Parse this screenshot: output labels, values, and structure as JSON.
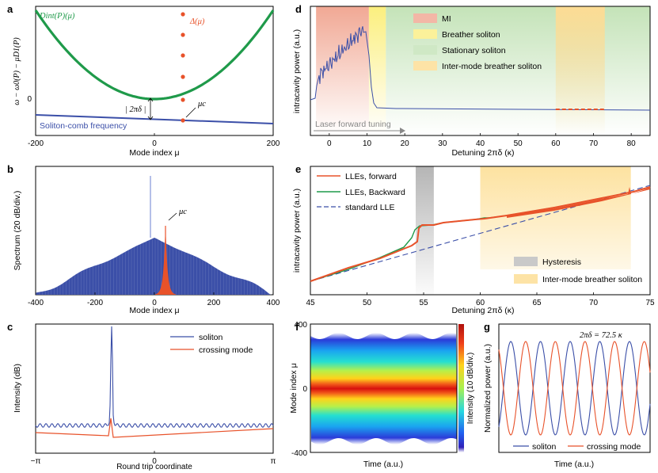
{
  "colors": {
    "green": "#1f9a4a",
    "blue": "#3b4fa8",
    "orange": "#e8522a",
    "mi": "#f3b7a6",
    "breather": "#fbf19a",
    "stationary": "#cfe8c5",
    "intermode": "#fde3a6",
    "gray": "#c9c9c9"
  },
  "chart_data": [
    {
      "id": "a",
      "panel_label": "a",
      "type": "line",
      "xlabel": "Mode index μ",
      "ylabel": "ω − ω0(P) − μD1(P)",
      "xticks": [
        "-200",
        "0",
        "200"
      ],
      "yticks": [
        "0"
      ],
      "xlim": [
        -200,
        200
      ],
      "series": [
        {
          "name": "Dint(P)(μ)",
          "kind": "parabola"
        },
        {
          "name": "Soliton-comb frequency",
          "kind": "line"
        },
        {
          "name": "Δ(μ)",
          "kind": "dots",
          "x": 50
        }
      ],
      "annotations": {
        "dispersion": "Dint(P)(μ)",
        "delta": "Δ(μ)",
        "mu_c": "μc",
        "gap": "2πδ",
        "comb": "Soliton-comb frequency"
      }
    },
    {
      "id": "b",
      "panel_label": "b",
      "type": "bar",
      "xlabel": "Mode index μ",
      "ylabel": "Spectrum (20 dB/div.)",
      "xticks": [
        "-400",
        "-200",
        "0",
        "200",
        "400"
      ],
      "xlim": [
        -400,
        400
      ],
      "annotations": {
        "mu_c": "μc"
      }
    },
    {
      "id": "c",
      "panel_label": "c",
      "type": "line",
      "xlabel": "Round trip coordinate",
      "ylabel": "Intensity (dB)",
      "xticks": [
        "−π",
        "0",
        "π"
      ],
      "legend": [
        "soliton",
        "crossing mode"
      ]
    },
    {
      "id": "d",
      "panel_label": "d",
      "type": "line",
      "xlabel": "Detuning 2πδ (κ)",
      "ylabel": "intracavity power (a.u.)",
      "xlim": [
        -5,
        85
      ],
      "xticks": [
        "0",
        "10",
        "20",
        "30",
        "40",
        "50",
        "60",
        "70",
        "80"
      ],
      "regions": [
        {
          "name": "MI",
          "from": -3.5,
          "to": 10.5
        },
        {
          "name": "Breather soliton",
          "from": 10.5,
          "to": 15
        },
        {
          "name": "Stationary soliton",
          "from": 15,
          "to": 85
        },
        {
          "name": "Inter-mode breather soliton",
          "from": 60,
          "to": 73
        }
      ],
      "legend": [
        "MI",
        "Breather soliton",
        "Stationary soliton",
        "Inter-mode breather soliton"
      ],
      "annotation": "Laser forward tuning"
    },
    {
      "id": "e",
      "panel_label": "e",
      "type": "line",
      "xlabel": "Detuning 2πδ (κ)",
      "ylabel": "intracavity power (a.u.)",
      "xlim": [
        45,
        75
      ],
      "xticks": [
        "45",
        "50",
        "55",
        "60",
        "65",
        "70",
        "75"
      ],
      "legend": [
        "LLEs, forward",
        "LLEs, Backward",
        "standard LLE"
      ],
      "regions": [
        {
          "name": "Hysteresis",
          "from": 54.3,
          "to": 55.9
        },
        {
          "name": "Inter-mode breather soliton",
          "from": 60,
          "to": 73.3
        }
      ],
      "region_legend": [
        "Hysteresis",
        "Inter-mode breather soliton"
      ]
    },
    {
      "id": "f",
      "panel_label": "f",
      "type": "heatmap",
      "xlabel": "Time (a.u.)",
      "ylabel": "Mode index μ",
      "yticks": [
        "400",
        "0",
        "-400"
      ],
      "colorbar_label": "Intensity (10 dB/div.)"
    },
    {
      "id": "g",
      "panel_label": "g",
      "type": "line",
      "xlabel": "Time (a.u.)",
      "ylabel": "Normalized power (a.u.)",
      "annotation": "2πδ = 72.5 κ",
      "legend": [
        "soliton",
        "crossing mode"
      ]
    }
  ]
}
